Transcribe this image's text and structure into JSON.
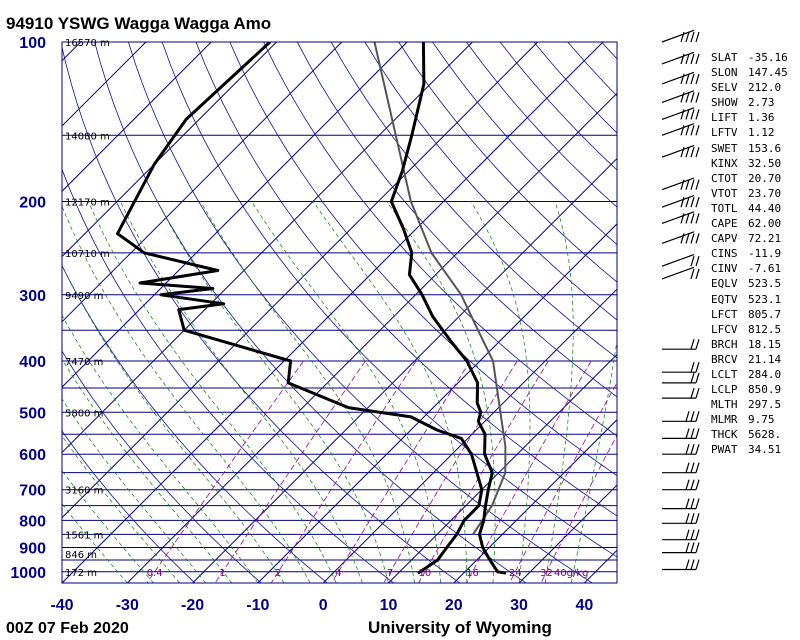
{
  "title": "94910 YSWG Wagga Wagga Amo",
  "footer": {
    "left": "00Z 07 Feb 2020",
    "right": "University of Wyoming"
  },
  "colors": {
    "isobar": "#000080",
    "isotherm": "#000080",
    "dry_adiabat": "#1010a0",
    "moist_adiabat": "#008000",
    "mixing_ratio": "#a000a0",
    "profile": "#000000",
    "parcel": "#555555"
  },
  "chart_data": {
    "type": "skew-T log-P diagram",
    "pressure_ticks_hPa": [
      100,
      200,
      300,
      400,
      500,
      600,
      700,
      800,
      900,
      1000
    ],
    "pressure_tick_labels": [
      "100",
      "200",
      "300",
      "400",
      "500",
      "600",
      "700",
      "800",
      "900",
      "1000"
    ],
    "temperature_ticks_C": [
      -40,
      -30,
      -20,
      -10,
      0,
      10,
      20,
      30,
      40
    ],
    "temperature_tick_labels": [
      "-40",
      "-30",
      "-20",
      "-10",
      "0",
      "10",
      "20",
      "30",
      "40"
    ],
    "p_range_hPa": [
      100,
      1050
    ],
    "t_range_at_1050hPa_C": [
      -40,
      45
    ],
    "height_labels": [
      {
        "p": 100,
        "text": "16570 m"
      },
      {
        "p": 150,
        "text": "14080 m"
      },
      {
        "p": 200,
        "text": "12170 m"
      },
      {
        "p": 250,
        "text": "10710 m"
      },
      {
        "p": 300,
        "text": "9490 m"
      },
      {
        "p": 400,
        "text": "7470 m"
      },
      {
        "p": 500,
        "text": "5800 m"
      },
      {
        "p": 700,
        "text": "3160 m"
      },
      {
        "p": 850,
        "text": "1561 m"
      },
      {
        "p": 925,
        "text": "846 m"
      },
      {
        "p": 1000,
        "text": "172 m"
      }
    ],
    "mixing_ratio_lines_gkg": [
      0.4,
      1,
      2,
      4,
      7,
      10,
      16,
      24,
      32
    ],
    "mixing_ratio_labels": [
      "0.4",
      "1",
      "2",
      "4",
      "7",
      "10",
      "16",
      "24",
      "32",
      "40g/kg"
    ],
    "series": [
      {
        "name": "temperature",
        "points": [
          {
            "p": 100,
            "t": -67.5
          },
          {
            "p": 120,
            "t": -61
          },
          {
            "p": 150,
            "t": -55
          },
          {
            "p": 175,
            "t": -51
          },
          {
            "p": 200,
            "t": -48
          },
          {
            "p": 225,
            "t": -42
          },
          {
            "p": 250,
            "t": -37
          },
          {
            "p": 275,
            "t": -34
          },
          {
            "p": 300,
            "t": -29
          },
          {
            "p": 330,
            "t": -24
          },
          {
            "p": 370,
            "t": -17
          },
          {
            "p": 400,
            "t": -12
          },
          {
            "p": 440,
            "t": -7
          },
          {
            "p": 480,
            "t": -4
          },
          {
            "p": 500,
            "t": -2
          },
          {
            "p": 520,
            "t": -1
          },
          {
            "p": 550,
            "t": 2
          },
          {
            "p": 600,
            "t": 5
          },
          {
            "p": 650,
            "t": 9
          },
          {
            "p": 700,
            "t": 11
          },
          {
            "p": 750,
            "t": 13
          },
          {
            "p": 800,
            "t": 15
          },
          {
            "p": 850,
            "t": 16.5
          },
          {
            "p": 900,
            "t": 19
          },
          {
            "p": 950,
            "t": 22
          },
          {
            "p": 1000,
            "t": 25
          },
          {
            "p": 1006,
            "t": 26.5
          }
        ]
      },
      {
        "name": "dewpoint",
        "points": [
          {
            "p": 100,
            "t": -91
          },
          {
            "p": 140,
            "t": -92
          },
          {
            "p": 170,
            "t": -90
          },
          {
            "p": 230,
            "t": -85
          },
          {
            "p": 250,
            "t": -78
          },
          {
            "p": 270,
            "t": -64
          },
          {
            "p": 285,
            "t": -74
          },
          {
            "p": 292,
            "t": -62
          },
          {
            "p": 300,
            "t": -69
          },
          {
            "p": 312,
            "t": -58
          },
          {
            "p": 320,
            "t": -64
          },
          {
            "p": 350,
            "t": -60
          },
          {
            "p": 400,
            "t": -39
          },
          {
            "p": 440,
            "t": -36
          },
          {
            "p": 490,
            "t": -23
          },
          {
            "p": 510,
            "t": -12
          },
          {
            "p": 540,
            "t": -6
          },
          {
            "p": 560,
            "t": -1
          },
          {
            "p": 600,
            "t": 3
          },
          {
            "p": 700,
            "t": 10
          },
          {
            "p": 750,
            "t": 12
          },
          {
            "p": 800,
            "t": 12
          },
          {
            "p": 850,
            "t": 13
          },
          {
            "p": 900,
            "t": 13.5
          },
          {
            "p": 950,
            "t": 14
          },
          {
            "p": 1006,
            "t": 13
          }
        ]
      },
      {
        "name": "parcel",
        "points": [
          {
            "p": 100,
            "t": -75
          },
          {
            "p": 200,
            "t": -45
          },
          {
            "p": 250,
            "t": -34
          },
          {
            "p": 300,
            "t": -23
          },
          {
            "p": 350,
            "t": -15
          },
          {
            "p": 400,
            "t": -8
          },
          {
            "p": 500,
            "t": 1
          },
          {
            "p": 580,
            "t": 7
          },
          {
            "p": 650,
            "t": 11
          },
          {
            "p": 750,
            "t": 14
          },
          {
            "p": 850,
            "t": 15.5
          }
        ]
      }
    ],
    "wind_barbs": [
      {
        "p": 100
      },
      {
        "p": 110
      },
      {
        "p": 120
      },
      {
        "p": 130
      },
      {
        "p": 140
      },
      {
        "p": 150
      },
      {
        "p": 165
      },
      {
        "p": 190
      },
      {
        "p": 205
      },
      {
        "p": 220
      },
      {
        "p": 240
      },
      {
        "p": 265
      },
      {
        "p": 280
      },
      {
        "p": 380
      },
      {
        "p": 420
      },
      {
        "p": 440
      },
      {
        "p": 470
      },
      {
        "p": 520
      },
      {
        "p": 560
      },
      {
        "p": 600
      },
      {
        "p": 650
      },
      {
        "p": 700
      },
      {
        "p": 760
      },
      {
        "p": 810
      },
      {
        "p": 870
      },
      {
        "p": 920
      },
      {
        "p": 990
      }
    ]
  },
  "indices": [
    {
      "name": "SLAT",
      "value": "-35.16"
    },
    {
      "name": "SLON",
      "value": "147.45"
    },
    {
      "name": "SELV",
      "value": "212.0"
    },
    {
      "name": "SHOW",
      "value": "2.73"
    },
    {
      "name": "LIFT",
      "value": "1.36"
    },
    {
      "name": "LFTV",
      "value": "1.12"
    },
    {
      "name": "SWET",
      "value": "153.6"
    },
    {
      "name": "KINX",
      "value": "32.50"
    },
    {
      "name": "CTOT",
      "value": "20.70"
    },
    {
      "name": "VTOT",
      "value": "23.70"
    },
    {
      "name": "TOTL",
      "value": "44.40"
    },
    {
      "name": "CAPE",
      "value": "62.00"
    },
    {
      "name": "CAPV",
      "value": "72.21"
    },
    {
      "name": "CINS",
      "value": "-11.9"
    },
    {
      "name": "CINV",
      "value": "-7.61"
    },
    {
      "name": "EQLV",
      "value": "523.5"
    },
    {
      "name": "EQTV",
      "value": "523.1"
    },
    {
      "name": "LFCT",
      "value": "805.7"
    },
    {
      "name": "LFCV",
      "value": "812.5"
    },
    {
      "name": "BRCH",
      "value": "18.15"
    },
    {
      "name": "BRCV",
      "value": "21.14"
    },
    {
      "name": "LCLT",
      "value": "284.0"
    },
    {
      "name": "LCLP",
      "value": "850.9"
    },
    {
      "name": "MLTH",
      "value": "297.5"
    },
    {
      "name": "MLMR",
      "value": "9.75"
    },
    {
      "name": "THCK",
      "value": "5628."
    },
    {
      "name": "PWAT",
      "value": "34.51"
    }
  ]
}
